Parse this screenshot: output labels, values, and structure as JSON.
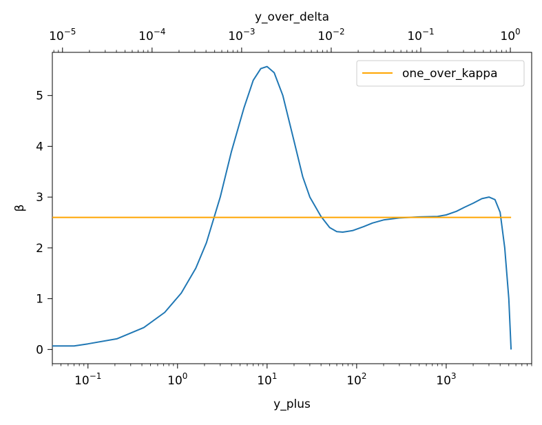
{
  "chart_data": {
    "type": "line",
    "title": "",
    "xlabel": "y_plus",
    "ylabel": "β",
    "x_scale": "log",
    "xlim": [
      0.04,
      9000
    ],
    "ylim": [
      -0.28,
      5.85
    ],
    "x_ticks": [
      {
        "base": "10",
        "exp": "−1",
        "value": 0.1
      },
      {
        "base": "10",
        "exp": "0",
        "value": 1
      },
      {
        "base": "10",
        "exp": "1",
        "value": 10
      },
      {
        "base": "10",
        "exp": "2",
        "value": 100
      },
      {
        "base": "10",
        "exp": "3",
        "value": 1000
      }
    ],
    "y_ticks": [
      {
        "label": "0",
        "value": 0
      },
      {
        "label": "1",
        "value": 1
      },
      {
        "label": "2",
        "value": 2
      },
      {
        "label": "3",
        "value": 3
      },
      {
        "label": "4",
        "value": 4
      },
      {
        "label": "5",
        "value": 5
      }
    ],
    "secondary_x": {
      "label": "y_over_delta",
      "scale": "log",
      "lim": [
        7.7e-06,
        1.73
      ],
      "ticks": [
        {
          "base": "10",
          "exp": "−5",
          "value": 1e-05
        },
        {
          "base": "10",
          "exp": "−4",
          "value": 0.0001
        },
        {
          "base": "10",
          "exp": "−3",
          "value": 0.001
        },
        {
          "base": "10",
          "exp": "−2",
          "value": 0.01
        },
        {
          "base": "10",
          "exp": "−1",
          "value": 0.1
        },
        {
          "base": "10",
          "exp": "0",
          "value": 1
        }
      ]
    },
    "series": [
      {
        "name": "",
        "color": "#1f77b4",
        "x": [
          0.04,
          0.07,
          0.1,
          0.21,
          0.42,
          0.72,
          1.1,
          1.6,
          2.1,
          3.0,
          4.0,
          5.5,
          7.0,
          8.5,
          10,
          12,
          15,
          20,
          25,
          30,
          40,
          50,
          60,
          70,
          90,
          120,
          150,
          200,
          300,
          500,
          800,
          1000,
          1300,
          1600,
          2000,
          2500,
          3000,
          3500,
          4000,
          4500,
          5000,
          5300
        ],
        "y": [
          0.07,
          0.07,
          0.11,
          0.21,
          0.43,
          0.73,
          1.11,
          1.6,
          2.1,
          3.0,
          3.9,
          4.75,
          5.3,
          5.53,
          5.57,
          5.45,
          5.0,
          4.1,
          3.4,
          3.0,
          2.62,
          2.4,
          2.32,
          2.31,
          2.34,
          2.42,
          2.49,
          2.55,
          2.59,
          2.61,
          2.62,
          2.65,
          2.72,
          2.8,
          2.88,
          2.97,
          3.0,
          2.95,
          2.7,
          2.0,
          1.0,
          0.0
        ]
      },
      {
        "name": "one_over_kappa",
        "color": "#ffa500",
        "x": [
          0.04,
          5300
        ],
        "y": [
          2.6,
          2.6
        ]
      }
    ],
    "legend": {
      "position": "upper-right",
      "entries": [
        "one_over_kappa"
      ]
    },
    "grid": false
  }
}
